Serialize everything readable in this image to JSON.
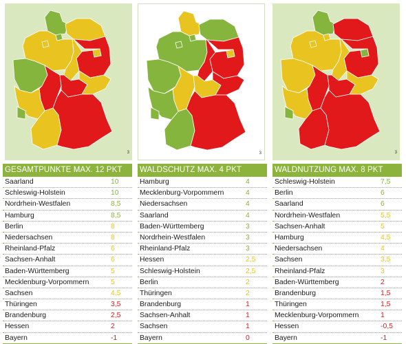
{
  "colors": {
    "green": "#86b53e",
    "yellow": "#e9c421",
    "red": "#e2191b",
    "header": "#8cb43c"
  },
  "map_notes": [
    "3",
    "3",
    "3"
  ],
  "tables": [
    {
      "title": "GESAMTPUNKTE MAX. 12 PKT",
      "rows": [
        {
          "name": "Saarland",
          "value": "10",
          "color": "green"
        },
        {
          "name": "Schleswig-Holstein",
          "value": "10",
          "color": "green"
        },
        {
          "name": "Nordrhein-Westfalen",
          "value": "8,5",
          "color": "green"
        },
        {
          "name": "Hamburg",
          "value": "8,5",
          "color": "green"
        },
        {
          "name": "Berlin",
          "value": "8",
          "color": "yellow"
        },
        {
          "name": "Niedersachsen",
          "value": "8",
          "color": "yellow"
        },
        {
          "name": "Rheinland-Pfalz",
          "value": "6",
          "color": "yellow"
        },
        {
          "name": "Sachsen-Anhalt",
          "value": "6",
          "color": "yellow"
        },
        {
          "name": "Baden-Württemberg",
          "value": "5",
          "color": "yellow"
        },
        {
          "name": "Mecklenburg-Vorpommern",
          "value": "5",
          "color": "yellow"
        },
        {
          "name": "Sachsen",
          "value": "4,5",
          "color": "yellow"
        },
        {
          "name": "Thüringen",
          "value": "3,5",
          "color": "red"
        },
        {
          "name": "Brandenburg",
          "value": "2,5",
          "color": "red"
        },
        {
          "name": "Hessen",
          "value": "2",
          "color": "red"
        },
        {
          "name": "Bayern",
          "value": "-1",
          "color": "red"
        }
      ]
    },
    {
      "title": "WALDSCHUTZ MAX. 4 PKT",
      "rows": [
        {
          "name": "Hamburg",
          "value": "4",
          "color": "green"
        },
        {
          "name": "Mecklenburg-Vorpommern",
          "value": "4",
          "color": "green"
        },
        {
          "name": "Niedersachsen",
          "value": "4",
          "color": "green"
        },
        {
          "name": "Saarland",
          "value": "4",
          "color": "green"
        },
        {
          "name": "Baden-Württemberg",
          "value": "3",
          "color": "green"
        },
        {
          "name": "Nordrhein-Westfalen",
          "value": "3",
          "color": "green"
        },
        {
          "name": "Rheinland-Pfalz",
          "value": "3",
          "color": "green"
        },
        {
          "name": "Hessen",
          "value": "2,5",
          "color": "yellow"
        },
        {
          "name": "Schleswig-Holstein",
          "value": "2,5",
          "color": "yellow"
        },
        {
          "name": "Berlin",
          "value": "2",
          "color": "yellow"
        },
        {
          "name": "Thüringen",
          "value": "2",
          "color": "yellow"
        },
        {
          "name": "Brandenburg",
          "value": "1",
          "color": "red"
        },
        {
          "name": "Sachsen-Anhalt",
          "value": "1",
          "color": "red"
        },
        {
          "name": "Sachsen",
          "value": "1",
          "color": "red"
        },
        {
          "name": "Bayern",
          "value": "0",
          "color": "red"
        }
      ]
    },
    {
      "title": "WALDNUTZUNG MAX. 8 PKT",
      "rows": [
        {
          "name": "Schleswig-Holstein",
          "value": "7,5",
          "color": "green"
        },
        {
          "name": "Berlin",
          "value": "6",
          "color": "green"
        },
        {
          "name": "Saarland",
          "value": "6",
          "color": "green"
        },
        {
          "name": "Nordrhein-Westfalen",
          "value": "5,5",
          "color": "yellow"
        },
        {
          "name": "Sachsen-Anhalt",
          "value": "5",
          "color": "yellow"
        },
        {
          "name": "Hamburg",
          "value": "4,5",
          "color": "yellow"
        },
        {
          "name": "Niedersachsen",
          "value": "4",
          "color": "yellow"
        },
        {
          "name": "Sachsen",
          "value": "3,5",
          "color": "yellow"
        },
        {
          "name": "Rheinland-Pfalz",
          "value": "3",
          "color": "yellow"
        },
        {
          "name": "Baden-Württemberg",
          "value": "2",
          "color": "red"
        },
        {
          "name": "Brandenburg",
          "value": "1,5",
          "color": "red"
        },
        {
          "name": "Thüringen",
          "value": "1,5",
          "color": "red"
        },
        {
          "name": "Mecklenburg-Vorpommern",
          "value": "1",
          "color": "red"
        },
        {
          "name": "Hessen",
          "value": "-0,5",
          "color": "red"
        },
        {
          "name": "Bayern",
          "value": "-1",
          "color": "red"
        }
      ]
    }
  ],
  "maps": [
    {
      "SH": "green",
      "HH": "green",
      "NI": "yellow",
      "HB": "yellow",
      "MV": "yellow",
      "BE": "yellow",
      "BB": "red",
      "ST": "yellow",
      "NW": "green",
      "HE": "red",
      "TH": "red",
      "SN": "yellow",
      "RP": "yellow",
      "SL": "green",
      "BW": "yellow",
      "BY": "red"
    },
    {
      "SH": "yellow",
      "HH": "green",
      "NI": "green",
      "HB": "green",
      "MV": "green",
      "BE": "yellow",
      "BB": "red",
      "ST": "red",
      "NW": "green",
      "HE": "yellow",
      "TH": "yellow",
      "SN": "red",
      "RP": "green",
      "SL": "green",
      "BW": "green",
      "BY": "red"
    },
    {
      "SH": "green",
      "HH": "yellow",
      "NI": "yellow",
      "HB": "yellow",
      "MV": "red",
      "BE": "green",
      "BB": "red",
      "ST": "yellow",
      "NW": "yellow",
      "HE": "red",
      "TH": "red",
      "SN": "yellow",
      "RP": "yellow",
      "SL": "green",
      "BW": "red",
      "BY": "red"
    }
  ]
}
